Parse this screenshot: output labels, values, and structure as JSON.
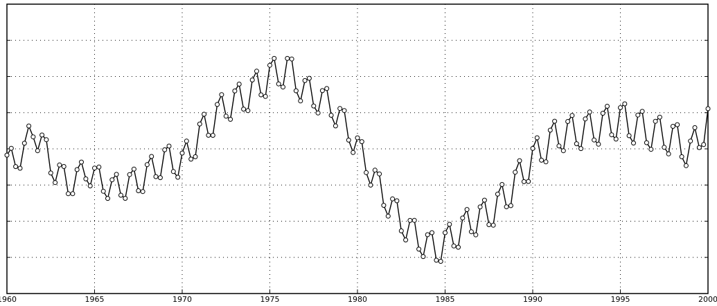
{
  "chart_data": {
    "type": "line",
    "title": "",
    "xlabel": "",
    "ylabel": "",
    "xlim": [
      1960,
      2000
    ],
    "ylim": [
      0,
      8
    ],
    "x_ticks": [
      1960,
      1965,
      1970,
      1975,
      1980,
      1985,
      1990,
      1995,
      2000
    ],
    "x_tick_labels": [
      "1960",
      "1965",
      "1970",
      "1975",
      "1980",
      "1985",
      "1990",
      "1995",
      "2000"
    ],
    "y_ticks": [
      1,
      2,
      3,
      4,
      5,
      6,
      7
    ],
    "grid": true,
    "marker": "circle",
    "line_color": "#000000",
    "series": [
      {
        "anchors": [
          [
            1960.0,
            3.6
          ],
          [
            1961.0,
            3.9
          ],
          [
            1961.5,
            4.6
          ],
          [
            1962.5,
            3.6
          ],
          [
            1963.5,
            3.0
          ],
          [
            1964.5,
            3.4
          ],
          [
            1966.0,
            2.9
          ],
          [
            1967.5,
            3.1
          ],
          [
            1969.0,
            3.7
          ],
          [
            1970.0,
            3.6
          ],
          [
            1971.0,
            4.4
          ],
          [
            1972.5,
            5.2
          ],
          [
            1973.5,
            5.4
          ],
          [
            1975.0,
            6.0
          ],
          [
            1976.0,
            6.2
          ],
          [
            1977.0,
            5.6
          ],
          [
            1978.5,
            5.2
          ],
          [
            1979.5,
            4.5
          ],
          [
            1980.5,
            3.6
          ],
          [
            1981.5,
            2.7
          ],
          [
            1982.5,
            2.0
          ],
          [
            1983.5,
            1.5
          ],
          [
            1984.5,
            1.2
          ],
          [
            1985.5,
            1.6
          ],
          [
            1986.5,
            2.0
          ],
          [
            1987.5,
            2.2
          ],
          [
            1988.5,
            2.7
          ],
          [
            1989.5,
            3.4
          ],
          [
            1990.5,
            4.0
          ],
          [
            1991.5,
            4.4
          ],
          [
            1993.0,
            4.5
          ],
          [
            1995.0,
            4.8
          ],
          [
            1996.5,
            4.5
          ],
          [
            1998.0,
            4.3
          ],
          [
            1999.0,
            3.9
          ],
          [
            2000.0,
            4.8
          ]
        ],
        "amplitudes": [
          [
            1960,
            0.4
          ],
          [
            1962,
            0.5
          ],
          [
            1964,
            0.4
          ],
          [
            1970,
            0.5
          ],
          [
            1975,
            0.55
          ],
          [
            1980,
            0.45
          ],
          [
            1985,
            0.5
          ],
          [
            1990,
            0.55
          ],
          [
            1995,
            0.6
          ],
          [
            2000,
            0.55
          ]
        ],
        "points_per_year": 4
      }
    ]
  }
}
